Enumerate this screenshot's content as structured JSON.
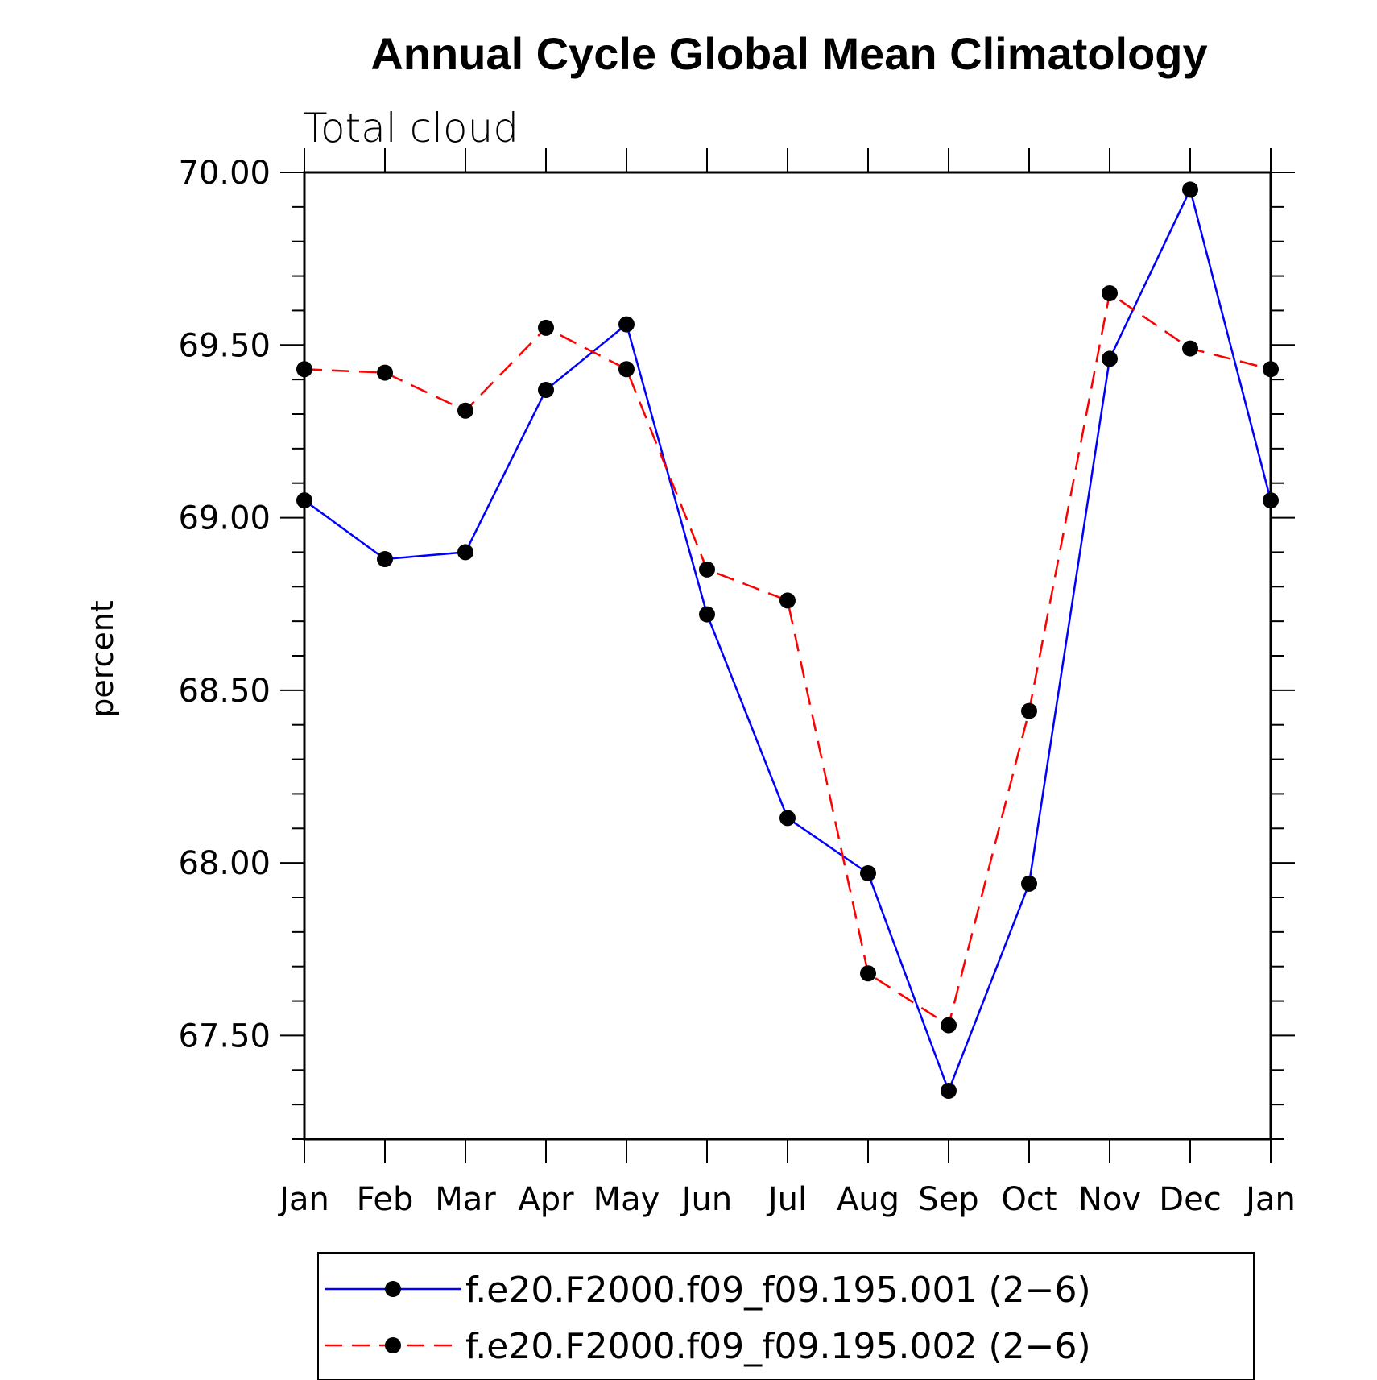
{
  "chart_data": {
    "type": "line",
    "title": "Annual Cycle Global Mean Climatology",
    "subtitle": "Total cloud",
    "xlabel": "",
    "ylabel": "percent",
    "categories": [
      "Jan",
      "Feb",
      "Mar",
      "Apr",
      "May",
      "Jun",
      "Jul",
      "Aug",
      "Sep",
      "Oct",
      "Nov",
      "Dec",
      "Jan"
    ],
    "ylim": [
      67.2,
      70.0
    ],
    "yticks": [
      70.0,
      69.5,
      69.0,
      68.5,
      68.0,
      67.5
    ],
    "ytick_labels": [
      "70.00",
      "69.50",
      "69.00",
      "68.50",
      "68.00",
      "67.50"
    ],
    "grid": false,
    "legend_position": "bottom",
    "series": [
      {
        "name": "f.e20.F2000.f09_f09.195.001 (2−6)",
        "color": "#0000ff",
        "line_style": "solid",
        "marker": "filled-circle",
        "values": [
          69.05,
          68.88,
          68.9,
          69.37,
          69.56,
          68.72,
          68.13,
          67.97,
          67.34,
          67.94,
          69.46,
          69.95,
          69.05
        ]
      },
      {
        "name": "f.e20.F2000.f09_f09.195.002 (2−6)",
        "color": "#ff0000",
        "line_style": "dashed",
        "marker": "filled-circle",
        "values": [
          69.43,
          69.42,
          69.31,
          69.55,
          69.43,
          68.85,
          68.76,
          67.68,
          67.53,
          68.44,
          69.65,
          69.49,
          69.43
        ]
      }
    ]
  }
}
